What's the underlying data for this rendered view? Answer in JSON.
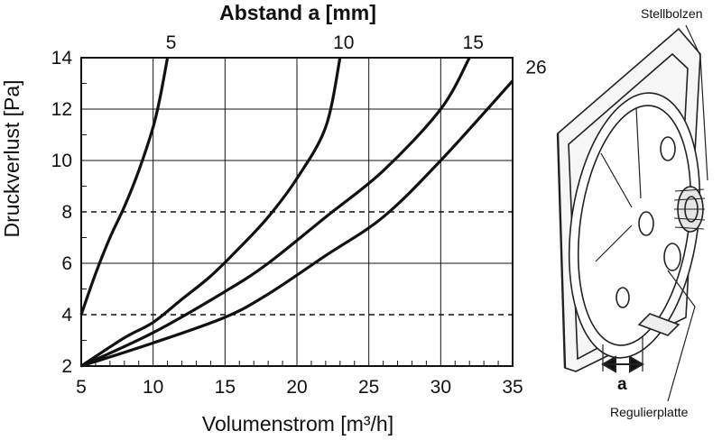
{
  "chart_data": {
    "type": "line",
    "top_title": "Abstand a [mm]",
    "xlabel": "Volumenstrom [m³/h]",
    "ylabel": "Druckverlust [Pa]",
    "xlim": [
      5,
      35
    ],
    "ylim": [
      2,
      14
    ],
    "x_ticks": [
      5,
      10,
      15,
      20,
      25,
      30,
      35
    ],
    "y_ticks": [
      2,
      4,
      6,
      8,
      10,
      12,
      14
    ],
    "dashed_y": [
      4,
      8
    ],
    "grid": true,
    "series": [
      {
        "name": "5",
        "points": [
          [
            5,
            4
          ],
          [
            6,
            5.6
          ],
          [
            7,
            7.0
          ],
          [
            8,
            8.2
          ],
          [
            9,
            9.6
          ],
          [
            10,
            11.3
          ],
          [
            10.5,
            12.5
          ],
          [
            11,
            14
          ]
        ]
      },
      {
        "name": "10",
        "points": [
          [
            5,
            2
          ],
          [
            8,
            3.1
          ],
          [
            10,
            3.7
          ],
          [
            12,
            4.6
          ],
          [
            14,
            5.5
          ],
          [
            16,
            6.6
          ],
          [
            18,
            7.8
          ],
          [
            20,
            9.3
          ],
          [
            22,
            11.3
          ],
          [
            23,
            14
          ]
        ]
      },
      {
        "name": "15",
        "points": [
          [
            5,
            2
          ],
          [
            10,
            3.3
          ],
          [
            15,
            4.9
          ],
          [
            18,
            6.0
          ],
          [
            22,
            7.8
          ],
          [
            26,
            9.6
          ],
          [
            30,
            12.0
          ],
          [
            32,
            14
          ]
        ]
      },
      {
        "name": "26",
        "points": [
          [
            5,
            2
          ],
          [
            10,
            2.9
          ],
          [
            15,
            3.9
          ],
          [
            18,
            4.8
          ],
          [
            22,
            6.3
          ],
          [
            26,
            7.8
          ],
          [
            30,
            10.0
          ],
          [
            35,
            13.1
          ]
        ]
      }
    ],
    "line_labels": [
      "5",
      "10",
      "15",
      "26"
    ]
  },
  "diagram": {
    "label_stellbolzen": "Stellbolzen",
    "label_a": "a",
    "label_regulierplatte": "Regulierplatte"
  }
}
